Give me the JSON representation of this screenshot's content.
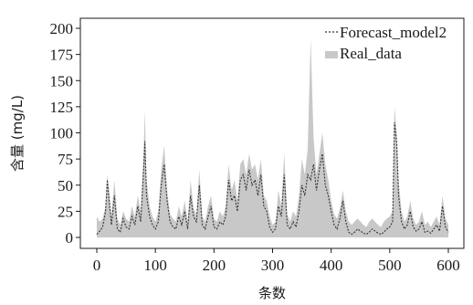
{
  "chart_data": {
    "type": "area",
    "xlabel": "条数",
    "ylabel": "含量 (mg/L)",
    "xlim": [
      0,
      600
    ],
    "ylim": [
      0,
      200
    ],
    "x_ticks": [
      "0",
      "100",
      "200",
      "300",
      "400",
      "500",
      "600"
    ],
    "y_ticks": [
      "0",
      "25",
      "50",
      "75",
      "100",
      "125",
      "150",
      "175",
      "200"
    ],
    "grid": false,
    "legend_position": "top-right",
    "series": [
      {
        "name": "Forecast_model2",
        "style": "dashed-line",
        "color": "#333333",
        "x": [
          0,
          5,
          10,
          15,
          18,
          22,
          25,
          30,
          35,
          40,
          45,
          50,
          55,
          60,
          65,
          70,
          75,
          80,
          82,
          85,
          90,
          95,
          100,
          105,
          110,
          115,
          120,
          125,
          130,
          135,
          140,
          145,
          150,
          155,
          160,
          165,
          170,
          175,
          180,
          185,
          190,
          195,
          200,
          205,
          210,
          215,
          220,
          225,
          230,
          235,
          240,
          245,
          250,
          255,
          260,
          265,
          270,
          275,
          280,
          285,
          290,
          295,
          300,
          305,
          310,
          315,
          320,
          325,
          330,
          335,
          340,
          345,
          350,
          355,
          360,
          365,
          370,
          375,
          380,
          385,
          390,
          395,
          400,
          405,
          410,
          415,
          420,
          425,
          430,
          435,
          440,
          445,
          450,
          455,
          460,
          465,
          470,
          475,
          480,
          485,
          490,
          495,
          500,
          505,
          508,
          512,
          515,
          520,
          525,
          530,
          535,
          540,
          545,
          550,
          555,
          560,
          565,
          570,
          575,
          580,
          585,
          590,
          595,
          600
        ],
        "values": [
          3,
          6,
          10,
          25,
          55,
          30,
          12,
          40,
          8,
          5,
          18,
          10,
          8,
          20,
          12,
          30,
          15,
          65,
          92,
          40,
          20,
          12,
          8,
          15,
          50,
          70,
          35,
          15,
          10,
          8,
          20,
          12,
          25,
          8,
          40,
          20,
          15,
          50,
          12,
          8,
          20,
          30,
          10,
          8,
          15,
          12,
          20,
          55,
          35,
          40,
          25,
          55,
          60,
          45,
          65,
          50,
          55,
          40,
          60,
          30,
          25,
          10,
          5,
          8,
          30,
          20,
          60,
          12,
          8,
          15,
          10,
          25,
          50,
          40,
          60,
          55,
          70,
          45,
          65,
          80,
          50,
          40,
          25,
          12,
          8,
          18,
          35,
          15,
          5,
          3,
          5,
          8,
          6,
          4,
          3,
          5,
          8,
          6,
          4,
          3,
          5,
          8,
          10,
          15,
          110,
          90,
          40,
          15,
          8,
          12,
          25,
          10,
          6,
          8,
          15,
          5,
          6,
          4,
          8,
          12,
          6,
          30,
          10,
          5
        ]
      },
      {
        "name": "Real_data",
        "style": "area",
        "color": "#c8c8c8",
        "x": [
          0,
          5,
          10,
          15,
          18,
          22,
          25,
          30,
          35,
          40,
          45,
          50,
          55,
          60,
          65,
          70,
          75,
          80,
          82,
          85,
          90,
          95,
          100,
          105,
          110,
          115,
          120,
          125,
          130,
          135,
          140,
          145,
          150,
          155,
          160,
          165,
          170,
          175,
          180,
          185,
          190,
          195,
          200,
          205,
          210,
          215,
          220,
          225,
          230,
          235,
          240,
          245,
          250,
          255,
          260,
          265,
          270,
          275,
          280,
          285,
          290,
          295,
          300,
          305,
          310,
          315,
          320,
          325,
          330,
          335,
          340,
          345,
          350,
          355,
          360,
          365,
          370,
          375,
          380,
          385,
          390,
          395,
          400,
          405,
          410,
          415,
          420,
          425,
          430,
          435,
          440,
          445,
          450,
          455,
          460,
          465,
          470,
          475,
          480,
          485,
          490,
          495,
          500,
          505,
          508,
          512,
          515,
          520,
          525,
          530,
          535,
          540,
          545,
          550,
          555,
          560,
          565,
          570,
          575,
          580,
          585,
          590,
          595,
          600
        ],
        "values": [
          20,
          15,
          18,
          30,
          60,
          40,
          20,
          55,
          18,
          12,
          25,
          18,
          15,
          30,
          20,
          40,
          25,
          80,
          122,
          55,
          30,
          20,
          15,
          25,
          65,
          88,
          45,
          22,
          18,
          15,
          30,
          20,
          35,
          15,
          55,
          28,
          22,
          65,
          20,
          15,
          30,
          40,
          18,
          15,
          25,
          20,
          30,
          70,
          45,
          55,
          35,
          70,
          75,
          60,
          80,
          65,
          70,
          55,
          75,
          40,
          35,
          20,
          12,
          15,
          45,
          30,
          80,
          22,
          15,
          25,
          20,
          40,
          75,
          60,
          85,
          190,
          95,
          60,
          80,
          100,
          70,
          55,
          35,
          22,
          18,
          28,
          45,
          25,
          15,
          12,
          15,
          18,
          15,
          12,
          10,
          15,
          18,
          15,
          12,
          10,
          15,
          18,
          20,
          25,
          125,
          100,
          55,
          25,
          15,
          20,
          35,
          18,
          12,
          15,
          25,
          12,
          15,
          10,
          15,
          20,
          12,
          40,
          18,
          12
        ]
      }
    ]
  }
}
